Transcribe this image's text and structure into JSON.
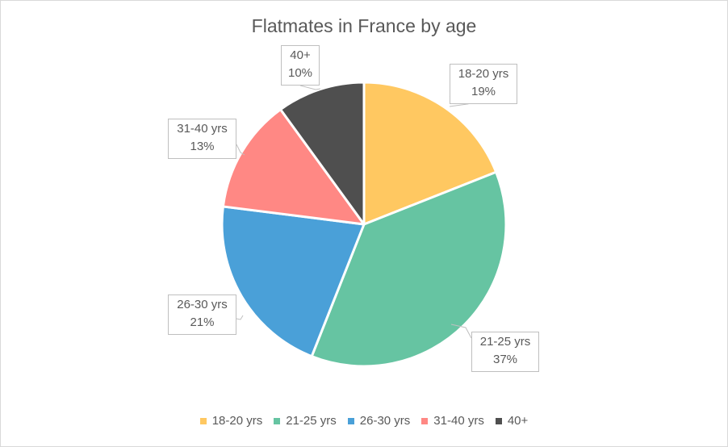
{
  "chart_data": {
    "type": "pie",
    "title": "Flatmates in France by age",
    "categories": [
      "18-20 yrs",
      "21-25 yrs",
      "26-30 yrs",
      "31-40 yrs",
      "40+"
    ],
    "values": [
      19,
      37,
      21,
      13,
      10
    ],
    "data_labels": [
      "19%",
      "37%",
      "21%",
      "13%",
      "10%"
    ],
    "colors": [
      "#FFC861",
      "#66C4A2",
      "#4AA0D8",
      "#FF8884",
      "#4F4F4F"
    ],
    "legend_position": "bottom"
  }
}
